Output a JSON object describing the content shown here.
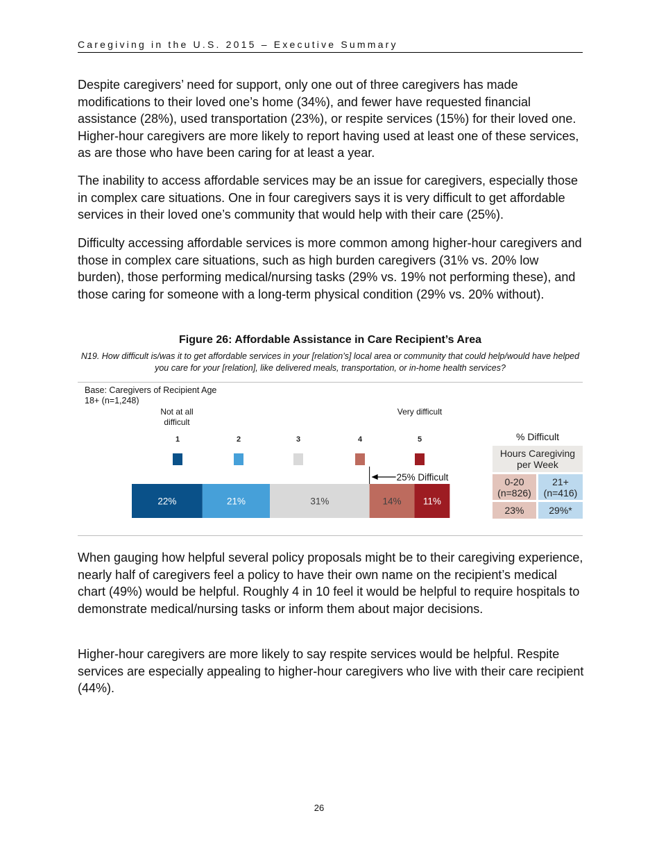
{
  "header": {
    "title": "Caregiving in the U.S. 2015 – Executive Summary"
  },
  "paragraphs_before": [
    "Despite caregivers’ need for support, only one out of three caregivers has made modifications to their loved one’s home (34%), and fewer have requested financial assistance (28%), used transportation (23%), or respite services (15%) for their loved one. Higher-hour caregivers are more likely to report having used at least one of these services, as are those who have been caring for at least a year.",
    "The inability to access affordable services may be an issue for caregivers, especially those in complex care situations. One in four caregivers says it is very difficult to get affordable services in their loved one’s community that would help with their care (25%).",
    "Difficulty accessing affordable services is more common among higher-hour caregivers and those in complex care situations, such as high burden caregivers (31% vs. 20% low burden), those performing medical/nursing tasks (29% vs. 19% not performing these), and those caring for someone with a long-term physical condition (29% vs. 20% without)."
  ],
  "figure": {
    "title": "Figure 26: Affordable Assistance in Care Recipient’s Area",
    "question": "N19. How difficult is/was it to get affordable services in your [relation’s] local area or community that could help/would have helped you care for your [relation], like delivered meals, transportation, or in-home health services?",
    "base": "Base: Caregivers of Recipient Age 18+ (n=1,248)",
    "low_label": "Not at all difficult",
    "high_label": "Very difficult",
    "chart_data": {
      "type": "stacked_bar",
      "xlim": [
        0,
        100
      ],
      "annotation": "25% Difficult",
      "series": [
        {
          "name": "1",
          "color": "#0a5189",
          "label_color": "#ffffff",
          "values": [
            22
          ],
          "value_labels": [
            "22%"
          ]
        },
        {
          "name": "2",
          "color": "#46a0d9",
          "label_color": "#ffffff",
          "values": [
            21
          ],
          "value_labels": [
            "21%"
          ]
        },
        {
          "name": "3",
          "color": "#d9d9d9",
          "label_color": "#404040",
          "values": [
            31
          ],
          "value_labels": [
            "31%"
          ]
        },
        {
          "name": "4",
          "color": "#bd6b5e",
          "label_color": "#404040",
          "values": [
            14
          ],
          "value_labels": [
            "14%"
          ]
        },
        {
          "name": "5",
          "color": "#9d1c22",
          "label_color": "#ffffff",
          "values": [
            11
          ],
          "value_labels": [
            "11%"
          ]
        }
      ]
    },
    "table": {
      "title": "% Difficult",
      "header": "Hours Caregiving per Week",
      "columns": [
        "0-20 (n=826)",
        "21+ (n=416)"
      ],
      "values": [
        "23%",
        "29%*"
      ]
    }
  },
  "paragraphs_after": [
    "When gauging how helpful several policy proposals might be to their caregiving experience, nearly half of caregivers feel a policy to have their own name on the recipient’s medical chart (49%) would be helpful. Roughly 4 in 10 feel it would be helpful to require hospitals to demonstrate medical/nursing tasks or inform them about major decisions.",
    "Higher-hour caregivers are more likely to say respite services would be helpful. Respite services are especially appealing to higher-hour caregivers who live with their care recipient (44%)."
  ],
  "page_number": "26"
}
